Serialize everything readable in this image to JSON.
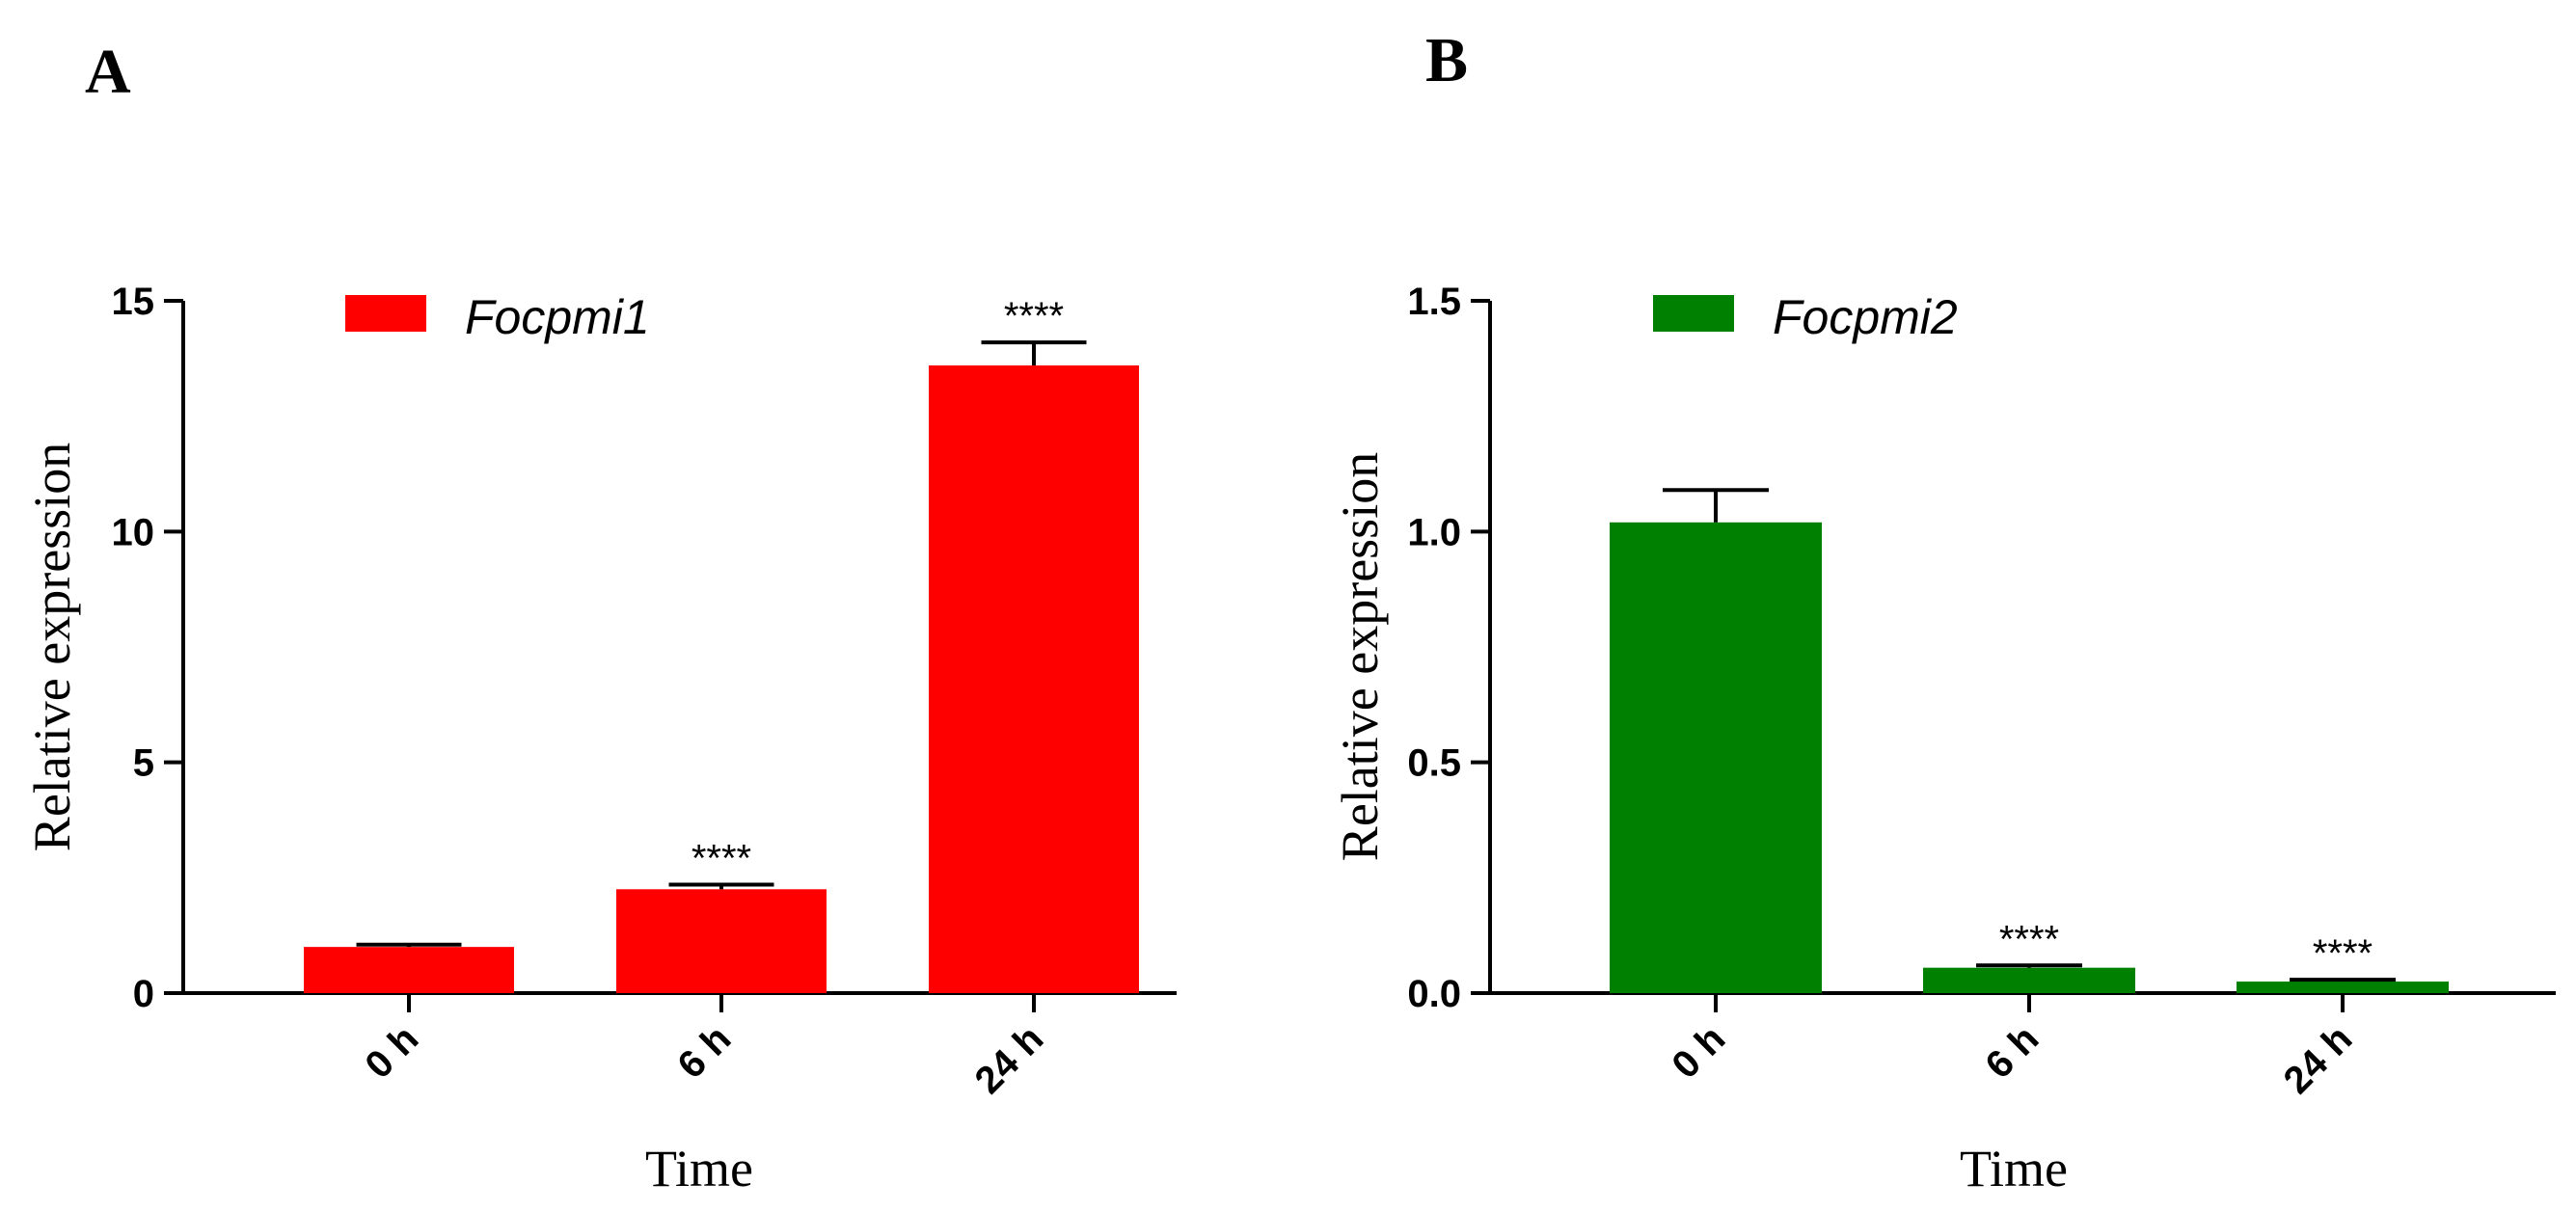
{
  "chart_data": [
    {
      "panel": "A",
      "type": "bar",
      "categories": [
        "0 h",
        "6 h",
        "24 h"
      ],
      "values": [
        1.0,
        2.25,
        13.6
      ],
      "errors": [
        0.05,
        0.1,
        0.5
      ],
      "significance": [
        "",
        "****",
        "****"
      ],
      "legend": "Focpmi1",
      "color": "#ff0000",
      "xlabel": "Time",
      "ylabel": "Relative expression",
      "ylim": [
        0,
        15
      ],
      "yticks": [
        0,
        5,
        10,
        15
      ],
      "ytick_labels": [
        "0",
        "5",
        "10",
        "15"
      ]
    },
    {
      "panel": "B",
      "type": "bar",
      "categories": [
        "0 h",
        "6 h",
        "24 h"
      ],
      "values": [
        1.02,
        0.055,
        0.025
      ],
      "errors": [
        0.07,
        0.005,
        0.004
      ],
      "significance": [
        "",
        "****",
        "****"
      ],
      "legend": "Focpmi2",
      "color": "#008000",
      "xlabel": "Time",
      "ylabel": "Relative expression",
      "ylim": [
        0,
        1.5
      ],
      "yticks": [
        0,
        0.5,
        1.0,
        1.5
      ],
      "ytick_labels": [
        "0.0",
        "0.5",
        "1.0",
        "1.5"
      ]
    }
  ]
}
